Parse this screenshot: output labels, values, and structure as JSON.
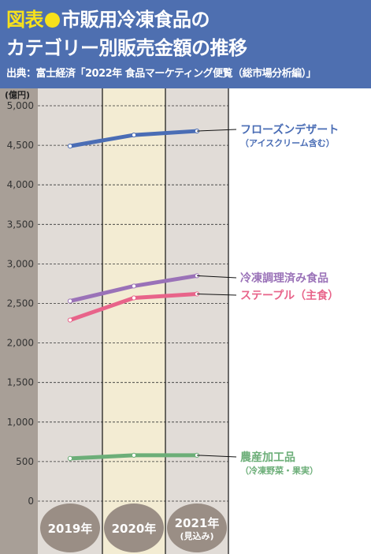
{
  "header": {
    "prefix": "図表",
    "title_line1": "市販用冷凍食品の",
    "title_line2": "カテゴリー別販売金額の推移",
    "source": "出典：富士経済「2022年 食品マーケティング便覧（総市場分析編）」"
  },
  "colors": {
    "header_bg": "#4e6fb0",
    "accent_yellow": "#f7e11b",
    "plot_bg_grey": "#e1dcd7",
    "plot_bg_cream": "#f3ecd3",
    "axis_strip": "#a89f97",
    "year_badge": "#9a8e85"
  },
  "chart_data": {
    "type": "line",
    "unit_label": "(億円)",
    "categories": [
      "2019年",
      "2020年",
      "2021年"
    ],
    "category_sublabels": [
      "",
      "",
      "(見込み)"
    ],
    "ylim": [
      0,
      5000
    ],
    "yticks": [
      0,
      500,
      1000,
      1500,
      2000,
      2500,
      3000,
      3500,
      4000,
      4500,
      5000
    ],
    "ytick_labels": [
      "0",
      "500",
      "1,000",
      "1,500",
      "2,000",
      "2,500",
      "3,000",
      "3,500",
      "4,000",
      "4,500",
      "5,000"
    ],
    "grid": "horizontal dashed",
    "series": [
      {
        "name": "フローズンデザート",
        "sublabel": "（アイスクリーム含む）",
        "values": [
          4490,
          4630,
          4680
        ],
        "color": "#4a6db5"
      },
      {
        "name": "冷凍調理済み食品",
        "sublabel": "",
        "values": [
          2530,
          2720,
          2850
        ],
        "color": "#9a72b8"
      },
      {
        "name": "ステープル（主食）",
        "sublabel": "",
        "values": [
          2290,
          2570,
          2620
        ],
        "color": "#e8648a"
      },
      {
        "name": "農産加工品",
        "sublabel": "（冷凍野菜・果実）",
        "values": [
          540,
          580,
          580
        ],
        "color": "#6cae78"
      }
    ]
  }
}
